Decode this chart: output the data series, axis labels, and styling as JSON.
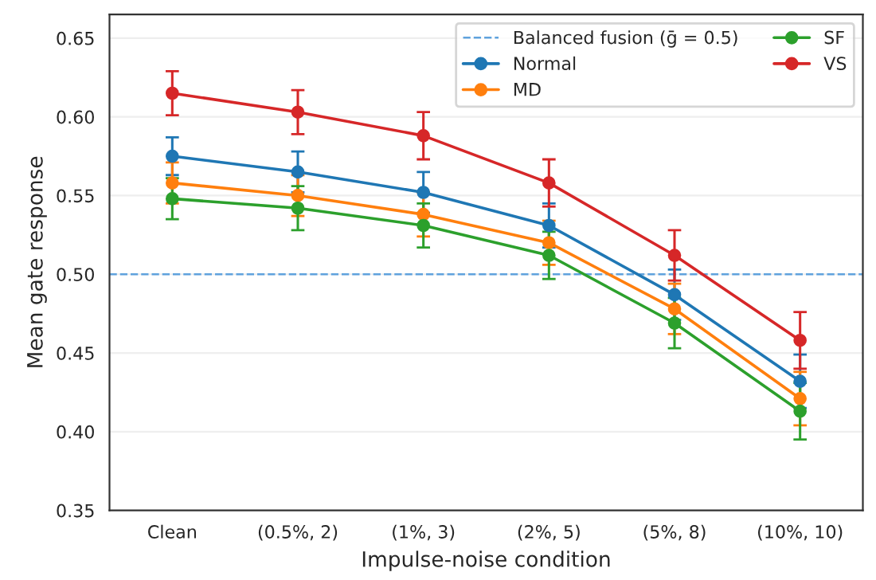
{
  "chart_data": {
    "type": "line",
    "xlabel": "Impulse-noise condition",
    "ylabel": "Mean gate response",
    "categories": [
      "Clean",
      "(0.5%, 2)",
      "(1%, 3)",
      "(2%, 5)",
      "(5%, 8)",
      "(10%, 10)"
    ],
    "series": [
      {
        "name": "Normal",
        "color": "#1f77b4",
        "values": [
          0.575,
          0.565,
          0.552,
          0.531,
          0.487,
          0.432
        ],
        "errors": [
          0.012,
          0.013,
          0.013,
          0.014,
          0.016,
          0.017
        ]
      },
      {
        "name": "MD",
        "color": "#ff7f0e",
        "values": [
          0.558,
          0.55,
          0.538,
          0.52,
          0.478,
          0.421
        ],
        "errors": [
          0.013,
          0.013,
          0.014,
          0.014,
          0.016,
          0.017
        ]
      },
      {
        "name": "SF",
        "color": "#2ca02c",
        "values": [
          0.548,
          0.542,
          0.531,
          0.512,
          0.469,
          0.413
        ],
        "errors": [
          0.013,
          0.014,
          0.014,
          0.015,
          0.016,
          0.018
        ]
      },
      {
        "name": "VS",
        "color": "#d62728",
        "values": [
          0.615,
          0.603,
          0.588,
          0.558,
          0.512,
          0.458
        ],
        "errors": [
          0.014,
          0.014,
          0.015,
          0.015,
          0.016,
          0.018
        ]
      }
    ],
    "ref_lines": [
      {
        "axis": "y",
        "value": 0.5,
        "label": "Balanced fusion (ḡ = 0.5)",
        "color": "#5fa2dd",
        "line_style": "dashed"
      }
    ],
    "ylim": [
      0.35,
      0.665
    ],
    "yticks": [
      0.35,
      {
        "value": 0.4,
        "label": "0.40"
      },
      0.45,
      {
        "value": 0.5,
        "label": "0.50"
      },
      0.55,
      {
        "value": 0.6,
        "label": "0.60"
      },
      0.65
    ],
    "grid": "y",
    "legend": "top right",
    "marker": "circle",
    "line_style": "solid"
  }
}
